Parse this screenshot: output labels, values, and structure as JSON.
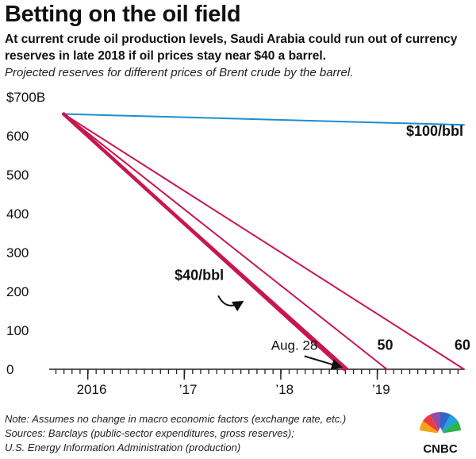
{
  "title": "Betting on the oil field",
  "subtitle": "At current crude oil production levels, Saudi Arabia could run out of currency reserves in late 2018 if oil prices stay near $40 a barrel.",
  "caption": "Projected reserves for different prices of Brent crude by the barrel.",
  "notes": [
    "Note: Assumes no change in macro economic factors (exchange rate, etc.)",
    "Sources: Barclays (public-sector expenditures, gross reserves);",
    "U.S. Energy Information  Administration (production)"
  ],
  "logo": {
    "text": "CNBC",
    "icon": "peacock-logo"
  },
  "colors": {
    "crimson": "#c8174f",
    "blue": "#1a8fd0",
    "axis": "#222222"
  },
  "chart_data": {
    "type": "line",
    "x_unit": "year",
    "xlim": [
      2015.6,
      2019.9
    ],
    "ylim": [
      0,
      700
    ],
    "y_ticks": [
      {
        "value": 0,
        "label": "0"
      },
      {
        "value": 100,
        "label": "100"
      },
      {
        "value": 200,
        "label": "200"
      },
      {
        "value": 300,
        "label": "300"
      },
      {
        "value": 400,
        "label": "400"
      },
      {
        "value": 500,
        "label": "500"
      },
      {
        "value": 600,
        "label": "600"
      },
      {
        "value": 700,
        "label": "$700B"
      }
    ],
    "x_ticks": [
      {
        "value": 2016.0,
        "label": "2016"
      },
      {
        "value": 2017.0,
        "label": "’17"
      },
      {
        "value": 2018.0,
        "label": "’18"
      },
      {
        "value": 2019.0,
        "label": "’19"
      }
    ],
    "grid": false,
    "series": [
      {
        "name": "$100/bbl",
        "color": "#1a8fd0",
        "stroke": 2,
        "points": [
          [
            2015.75,
            656
          ],
          [
            2019.9,
            628
          ]
        ]
      },
      {
        "name": "$40/bbl",
        "color": "#c8174f",
        "stroke": 4.5,
        "points": [
          [
            2015.75,
            656
          ],
          [
            2018.66,
            0
          ]
        ]
      },
      {
        "name": "50",
        "color": "#c8174f",
        "stroke": 2,
        "points": [
          [
            2015.75,
            656
          ],
          [
            2019.1,
            0
          ]
        ]
      },
      {
        "name": "60",
        "color": "#c8174f",
        "stroke": 2,
        "points": [
          [
            2015.75,
            656
          ],
          [
            2019.9,
            0
          ]
        ]
      },
      {
        "name": "",
        "color": "#c8174f",
        "stroke": 2,
        "points": [
          [
            2015.75,
            656
          ],
          [
            2018.7,
            0
          ]
        ]
      }
    ],
    "annotations": [
      {
        "text": "$100/bbl",
        "x": 2019.3,
        "y": 600
      },
      {
        "text": "$40/bbl",
        "x": 2016.9,
        "y": 230
      },
      {
        "text": "Aug. 28",
        "x": 2017.9,
        "y": 50
      },
      {
        "text": "50",
        "x": 2019.0,
        "y": 50
      },
      {
        "text": "60",
        "x": 2019.8,
        "y": 50
      }
    ]
  }
}
